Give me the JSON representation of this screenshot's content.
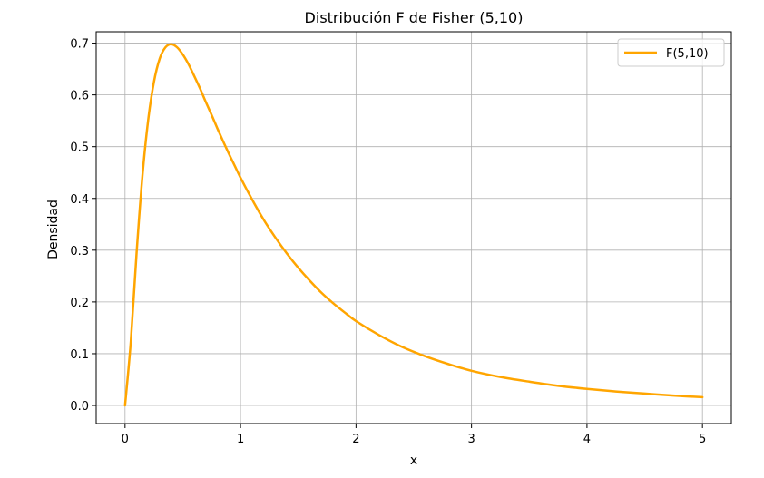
{
  "chart_data": {
    "type": "line",
    "title": "Distribución F de Fisher (5,10)",
    "xlabel": "x",
    "ylabel": "Densidad",
    "xlim": [
      -0.25,
      5.25
    ],
    "ylim": [
      -0.035,
      0.722
    ],
    "xticks": [
      0,
      1,
      2,
      3,
      4,
      5
    ],
    "xtick_labels": [
      "0",
      "1",
      "2",
      "3",
      "4",
      "5"
    ],
    "yticks": [
      0.0,
      0.1,
      0.2,
      0.3,
      0.4,
      0.5,
      0.6,
      0.7
    ],
    "ytick_labels": [
      "0.0",
      "0.1",
      "0.2",
      "0.3",
      "0.4",
      "0.5",
      "0.6",
      "0.7"
    ],
    "grid": true,
    "legend_position": "top-right",
    "series": [
      {
        "name": "F(5,10)",
        "color": "#FFA500",
        "x": [
          0.0,
          0.05,
          0.1,
          0.15,
          0.2,
          0.25,
          0.3,
          0.35,
          0.4,
          0.45,
          0.5,
          0.55,
          0.6,
          0.65,
          0.7,
          0.75,
          0.8,
          0.85,
          0.9,
          0.95,
          1.0,
          1.1,
          1.2,
          1.3,
          1.4,
          1.5,
          1.6,
          1.7,
          1.8,
          1.9,
          2.0,
          2.2,
          2.4,
          2.6,
          2.8,
          3.0,
          3.25,
          3.5,
          3.75,
          4.0,
          4.25,
          4.5,
          4.75,
          5.0
        ],
        "y": [
          0.0,
          0.124,
          0.295,
          0.442,
          0.551,
          0.625,
          0.67,
          0.692,
          0.698,
          0.692,
          0.678,
          0.659,
          0.636,
          0.612,
          0.586,
          0.561,
          0.535,
          0.51,
          0.486,
          0.463,
          0.44,
          0.398,
          0.359,
          0.325,
          0.294,
          0.266,
          0.241,
          0.218,
          0.198,
          0.18,
          0.163,
          0.136,
          0.113,
          0.095,
          0.08,
          0.067,
          0.055,
          0.046,
          0.038,
          0.032,
          0.027,
          0.023,
          0.019,
          0.016
        ]
      }
    ]
  }
}
